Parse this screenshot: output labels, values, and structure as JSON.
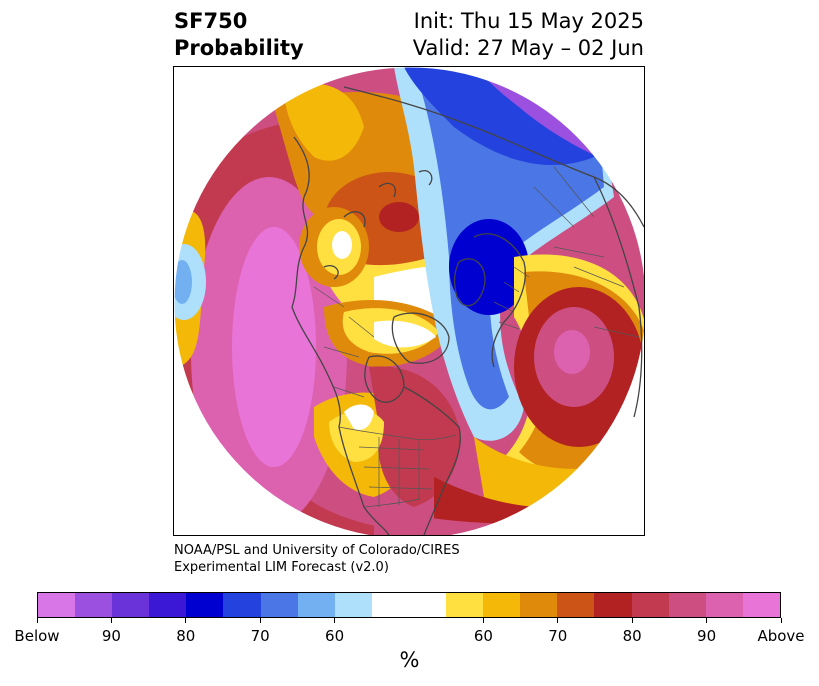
{
  "header": {
    "title_line1": "SF750",
    "title_line2": "Probability",
    "init_text": "Init: Thu 15 May 2025",
    "valid_text": "Valid: 27 May – 02 Jun"
  },
  "credit": {
    "line1": "NOAA/PSL and University of Colorado/CIRES",
    "line2": "Experimental LIM Forecast (v2.0)"
  },
  "colorbar": {
    "colors": [
      "#d876e8",
      "#9b50e0",
      "#6a33d9",
      "#3a18d6",
      "#0000d0",
      "#2442dd",
      "#4a76e6",
      "#72b0f2",
      "#aee0fb",
      "#ffffff",
      "#ffffff",
      "#ffe040",
      "#f4b808",
      "#e08a0c",
      "#cc5416",
      "#b22222",
      "#c23a50",
      "#cd4f82",
      "#dc62b0",
      "#e874d8"
    ],
    "tick_labels": [
      "Below",
      "90",
      "80",
      "70",
      "60",
      "60",
      "70",
      "80",
      "90",
      "Above"
    ],
    "unit_label": "%"
  },
  "map": {
    "projection": "north-polar-stereographic",
    "colors": {
      "purple": "#9b50e0",
      "deep_blue": "#0000d0",
      "blue": "#4a76e6",
      "light_blue": "#aee0fb",
      "yellow": "#ffe040",
      "gold": "#f4b808",
      "orange": "#e08a0c",
      "dark_orange": "#cc5416",
      "red": "#b22222",
      "crimson": "#c23a50",
      "rose": "#cd4f82",
      "pink": "#dc62b0",
      "magenta": "#e874d8",
      "coast": "#444444"
    }
  }
}
